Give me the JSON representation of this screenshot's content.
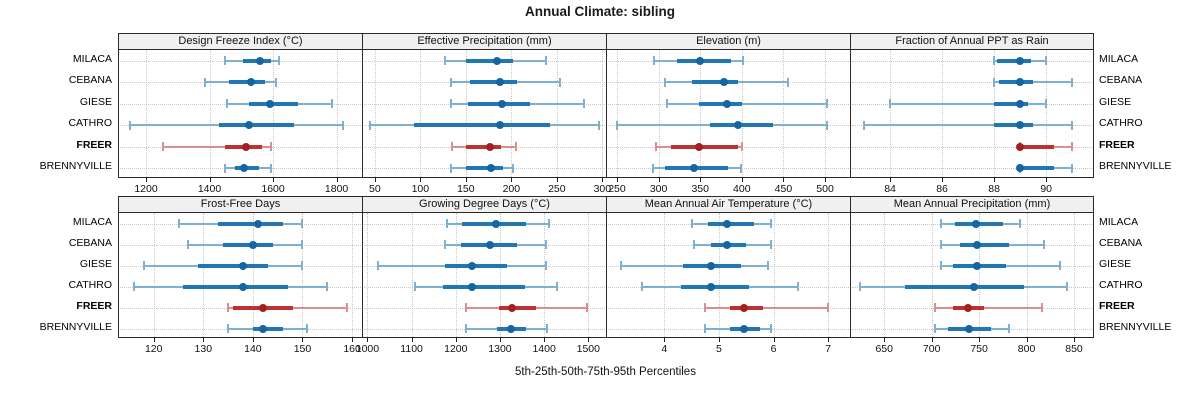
{
  "title": "Annual Climate: sibling",
  "axis_caption": "5th-25th-50th-75th-95th Percentiles",
  "sites": [
    "MILACA",
    "CEBANA",
    "GIESE",
    "CATHRO",
    "FREER",
    "BRENNYVILLE"
  ],
  "highlight_site": "FREER",
  "colors": {
    "normal_whisker": "#7fb0d2",
    "normal_box": "#2077b4",
    "normal_dot": "#1565a0",
    "highlight_whisker": "#d98f8f",
    "highlight_box": "#b93333",
    "highlight_dot": "#a32020",
    "grid": "#c6c6c6",
    "panel_border": "#2a2a2a",
    "header_bg": "#f0f0f0"
  },
  "chart_data": {
    "type": "percentile-dotplot-trellis",
    "percentiles": [
      "5th",
      "25th",
      "50th",
      "75th",
      "95th"
    ],
    "rows": [
      "MILACA",
      "CEBANA",
      "GIESE",
      "CATHRO",
      "FREER",
      "BRENNYVILLE"
    ],
    "highlight_row": "FREER",
    "panels": [
      {
        "title": "Design Freeze Index (°C)",
        "band": 0,
        "slug": "design-freeze-index",
        "xlim": [
          1115,
          1880
        ],
        "ticks": [
          1200,
          1400,
          1600,
          1800
        ],
        "values": [
          [
            1450,
            1505,
            1560,
            1595,
            1620
          ],
          [
            1385,
            1460,
            1530,
            1575,
            1610
          ],
          [
            1455,
            1525,
            1590,
            1680,
            1785
          ],
          [
            1150,
            1430,
            1525,
            1665,
            1820
          ],
          [
            1255,
            1450,
            1515,
            1565,
            1595
          ],
          [
            1450,
            1480,
            1510,
            1555,
            1595
          ]
        ]
      },
      {
        "title": "Effective Precipitation (mm)",
        "band": 0,
        "slug": "effective-precipitation",
        "xlim": [
          37,
          304
        ],
        "ticks": [
          50,
          100,
          150,
          200,
          250,
          300
        ],
        "values": [
          [
            127,
            150,
            184,
            202,
            238
          ],
          [
            134,
            155,
            187,
            206,
            254
          ],
          [
            134,
            152,
            190,
            221,
            280
          ],
          [
            45,
            93,
            187,
            242,
            296
          ],
          [
            135,
            150,
            176,
            189,
            205
          ],
          [
            134,
            150,
            178,
            191,
            202
          ]
        ]
      },
      {
        "title": "Elevation (m)",
        "band": 0,
        "slug": "elevation",
        "xlim": [
          238,
          530
        ],
        "ticks": [
          250,
          300,
          350,
          400,
          450,
          500
        ],
        "values": [
          [
            295,
            322,
            350,
            387,
            401
          ],
          [
            308,
            340,
            378,
            396,
            455
          ],
          [
            310,
            348,
            382,
            400,
            502
          ],
          [
            250,
            362,
            395,
            438,
            502
          ],
          [
            297,
            315,
            349,
            395,
            400
          ],
          [
            293,
            308,
            343,
            383,
            399
          ]
        ]
      },
      {
        "title": "Fraction of Annual PPT as Rain",
        "band": 0,
        "slug": "fraction-annual-ppt-rain",
        "xlim": [
          82.5,
          91.8
        ],
        "ticks": [
          84,
          86,
          88,
          90
        ],
        "values": [
          [
            88,
            88.1,
            89,
            89.4,
            90
          ],
          [
            88,
            88.2,
            89,
            89.5,
            91
          ],
          [
            84,
            88,
            89,
            89.3,
            90
          ],
          [
            83,
            88,
            89,
            89.5,
            91
          ],
          [
            89,
            89,
            89,
            90.3,
            91
          ],
          [
            89,
            89,
            89,
            90.3,
            91
          ]
        ]
      },
      {
        "title": "Frost-Free Days",
        "band": 1,
        "slug": "frost-free-days",
        "xlim": [
          113,
          162
        ],
        "ticks": [
          120,
          130,
          140,
          150,
          160
        ],
        "values": [
          [
            125,
            133,
            141,
            146,
            150
          ],
          [
            127,
            134,
            140,
            144,
            150
          ],
          [
            118,
            129,
            138,
            143,
            150
          ],
          [
            116,
            126,
            138,
            147,
            155
          ],
          [
            135,
            136,
            142,
            148,
            159
          ],
          [
            135,
            140,
            142,
            146,
            151
          ]
        ]
      },
      {
        "title": "Growing Degree Days (°C)",
        "band": 1,
        "slug": "growing-degree-days",
        "xlim": [
          990,
          1540
        ],
        "ticks": [
          1000,
          1100,
          1200,
          1300,
          1400,
          1500
        ],
        "values": [
          [
            1180,
            1215,
            1290,
            1360,
            1410
          ],
          [
            1175,
            1212,
            1278,
            1338,
            1405
          ],
          [
            1023,
            1175,
            1236,
            1316,
            1404
          ],
          [
            1108,
            1171,
            1236,
            1356,
            1430
          ],
          [
            1223,
            1297,
            1328,
            1382,
            1497
          ],
          [
            1223,
            1293,
            1324,
            1360,
            1406
          ]
        ]
      },
      {
        "title": "Mean Annual Air Temperature (°C)",
        "band": 1,
        "slug": "mean-annual-air-temperature",
        "xlim": [
          2.95,
          7.4
        ],
        "ticks": [
          4,
          5,
          6,
          7
        ],
        "values": [
          [
            4.5,
            4.8,
            5.15,
            5.65,
            5.95
          ],
          [
            4.55,
            4.85,
            5.15,
            5.5,
            5.95
          ],
          [
            3.2,
            4.35,
            4.85,
            5.4,
            5.9
          ],
          [
            3.6,
            4.3,
            4.85,
            5.55,
            6.45
          ],
          [
            4.75,
            5.2,
            5.45,
            5.8,
            7.0
          ],
          [
            4.75,
            5.2,
            5.45,
            5.75,
            5.95
          ]
        ]
      },
      {
        "title": "Mean Annual Precipitation (mm)",
        "band": 1,
        "slug": "mean-annual-precipitation",
        "xlim": [
          615,
          870
        ],
        "ticks": [
          650,
          700,
          750,
          800,
          850
        ],
        "values": [
          [
            710,
            725,
            747,
            775,
            793
          ],
          [
            710,
            730,
            748,
            782,
            818
          ],
          [
            710,
            723,
            748,
            778,
            835
          ],
          [
            625,
            672,
            745,
            797,
            843
          ],
          [
            704,
            722,
            738,
            755,
            816
          ],
          [
            703,
            717,
            739,
            762,
            781
          ]
        ]
      }
    ]
  }
}
